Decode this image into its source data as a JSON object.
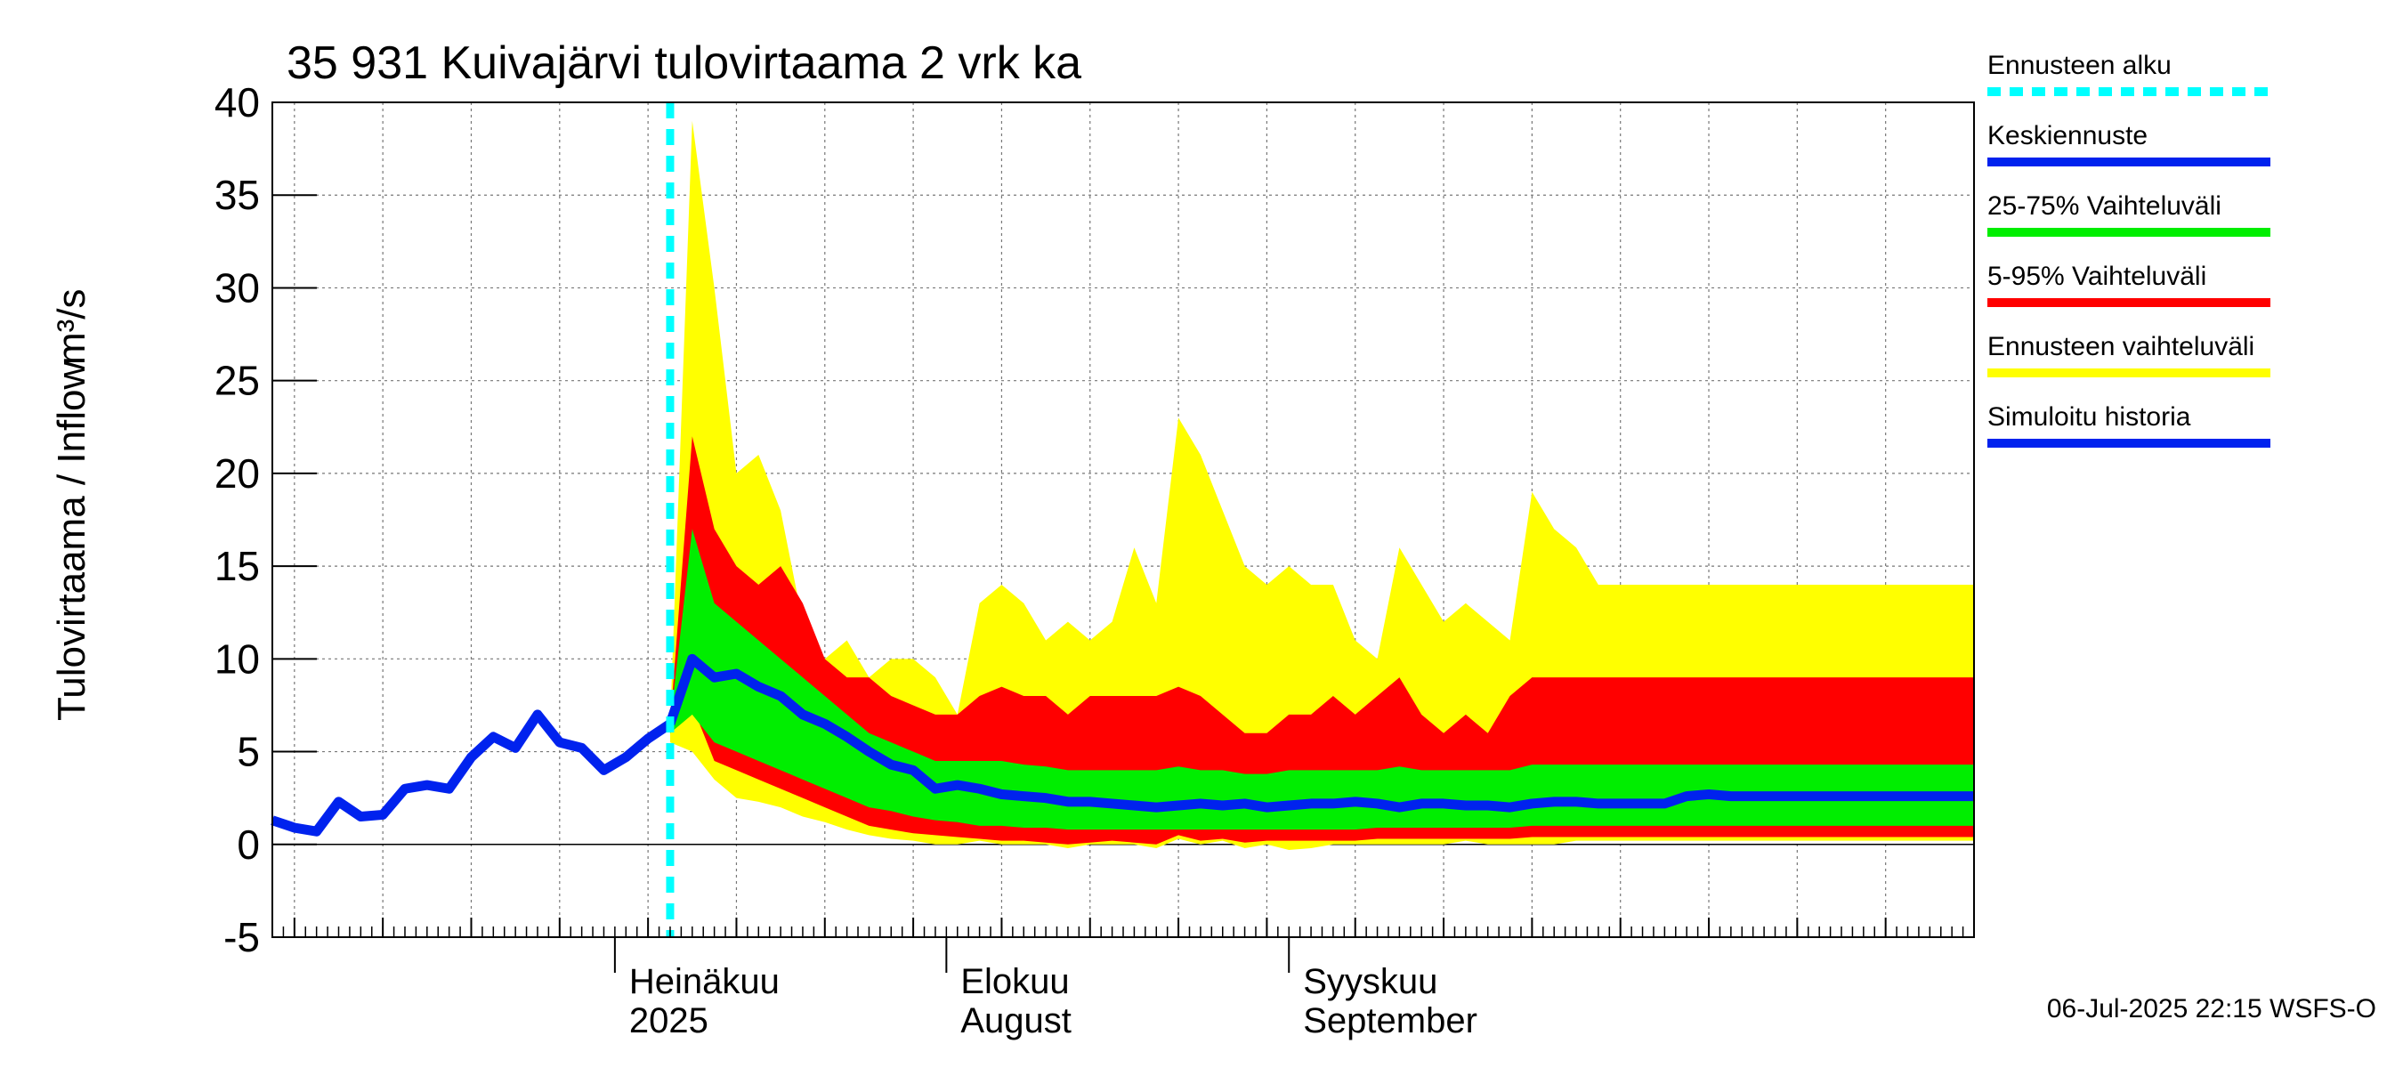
{
  "chart_data": {
    "type": "area",
    "title": "35 931 Kuivajärvi tulovirtaama 2 vrk ka",
    "ylabel": "Tulovirtaama / Inflow",
    "yunit": "m³/s",
    "ylim": [
      -5,
      40
    ],
    "yticks": [
      -5,
      0,
      5,
      10,
      15,
      20,
      25,
      30,
      35,
      40
    ],
    "xlim": [
      "2025-05-01",
      "2025-10-02"
    ],
    "grid": true,
    "legend_position": "right",
    "month_labels": [
      {
        "date": "2025-06-01",
        "line1": "Heinäkuu",
        "line2": "2025"
      },
      {
        "date": "2025-07-01",
        "line1": "Elokuu",
        "line2": "August"
      },
      {
        "date": "2025-08-01",
        "line1": "Syyskuu",
        "line2": "September"
      }
    ],
    "legend": [
      {
        "key": "forecast_start",
        "label": "Ennusteen alku",
        "color": "#00ffff",
        "style": "dashed"
      },
      {
        "key": "median",
        "label": "Keskiennuste",
        "color": "#0022ee",
        "style": "solid"
      },
      {
        "key": "p25_75",
        "label": "25-75% Vaihteluväli",
        "color": "#00ee00",
        "style": "solid"
      },
      {
        "key": "p5_95",
        "label": "5-95% Vaihteluväli",
        "color": "#ff0000",
        "style": "solid"
      },
      {
        "key": "range",
        "label": "Ennusteen vaihteluväli",
        "color": "#ffff00",
        "style": "solid"
      },
      {
        "key": "history",
        "label": "Simuloitu historia",
        "color": "#0022ee",
        "style": "solid"
      }
    ],
    "forecast_start": "2025-06-06",
    "x": [
      "2025-06-06",
      "2025-06-08",
      "2025-06-10",
      "2025-06-12",
      "2025-06-14",
      "2025-06-16",
      "2025-06-18",
      "2025-06-20",
      "2025-06-22",
      "2025-06-24",
      "2025-06-26",
      "2025-06-28",
      "2025-06-30",
      "2025-07-02",
      "2025-07-04",
      "2025-07-06",
      "2025-07-08",
      "2025-07-10",
      "2025-07-12",
      "2025-07-14",
      "2025-07-16",
      "2025-07-18",
      "2025-07-20",
      "2025-07-22",
      "2025-07-24",
      "2025-07-26",
      "2025-07-28",
      "2025-07-30",
      "2025-08-01",
      "2025-08-03",
      "2025-08-05",
      "2025-08-07",
      "2025-08-09",
      "2025-08-11",
      "2025-08-13",
      "2025-08-15",
      "2025-08-17",
      "2025-08-19",
      "2025-08-21",
      "2025-08-23",
      "2025-08-25",
      "2025-08-27",
      "2025-08-29",
      "2025-08-31",
      "2025-09-02",
      "2025-09-04",
      "2025-09-06",
      "2025-09-08",
      "2025-09-10",
      "2025-09-12",
      "2025-09-14",
      "2025-09-16",
      "2025-09-18",
      "2025-09-20",
      "2025-09-22",
      "2025-09-24",
      "2025-09-26",
      "2025-09-28",
      "2025-09-30",
      "2025-10-02"
    ],
    "series": [
      {
        "key": "range",
        "upper": [
          6.5,
          39,
          30,
          20,
          21,
          18,
          12,
          10,
          11,
          9,
          10,
          10,
          9,
          7,
          13,
          14,
          13,
          11,
          12,
          11,
          12,
          16,
          13,
          23,
          21,
          18,
          15,
          14,
          15,
          14,
          14,
          11,
          10,
          16,
          14,
          12,
          13,
          12,
          11,
          19,
          17,
          16,
          14,
          14,
          14,
          14,
          14,
          14,
          14,
          14,
          14,
          14,
          14,
          14,
          14,
          14,
          14,
          14,
          14,
          14
        ],
        "lower": [
          5.5,
          5,
          3.5,
          2.5,
          2.3,
          2,
          1.5,
          1.2,
          0.8,
          0.5,
          0.3,
          0.2,
          0,
          0,
          0.2,
          0,
          0,
          0,
          -0.2,
          0,
          0,
          0,
          -0.2,
          0.3,
          0,
          0.2,
          -0.2,
          0,
          -0.3,
          -0.2,
          0,
          0,
          0,
          0,
          0,
          0,
          0.2,
          0,
          0,
          0,
          0,
          0.2,
          0.2,
          0.2,
          0.2,
          0.2,
          0.2,
          0.2,
          0.2,
          0.2,
          0.2,
          0.2,
          0.2,
          0.2,
          0.2,
          0.2,
          0.2,
          0.2,
          0.2,
          0.2
        ]
      },
      {
        "key": "p5_95",
        "upper": [
          6.5,
          22,
          17,
          15,
          14,
          15,
          13,
          10,
          9,
          9,
          8,
          7.5,
          7,
          7,
          8,
          8.5,
          8,
          8,
          7,
          8,
          8,
          8,
          8,
          8.5,
          8,
          7,
          6,
          6,
          7,
          7,
          8,
          7,
          8,
          9,
          7,
          6,
          7,
          6,
          8,
          9,
          9,
          9,
          9,
          9,
          9,
          9,
          9,
          9,
          9,
          9,
          9,
          9,
          9,
          9,
          9,
          9,
          9,
          9,
          9,
          9
        ],
        "lower": [
          6,
          7.5,
          4.5,
          4,
          3.5,
          3,
          2.5,
          2,
          1.5,
          1,
          0.8,
          0.6,
          0.5,
          0.4,
          0.3,
          0.2,
          0.2,
          0.1,
          0,
          0.1,
          0.2,
          0.1,
          0,
          0.5,
          0.2,
          0.3,
          0.1,
          0.2,
          0.2,
          0.2,
          0.2,
          0.2,
          0.3,
          0.3,
          0.3,
          0.3,
          0.3,
          0.3,
          0.3,
          0.4,
          0.4,
          0.4,
          0.4,
          0.4,
          0.4,
          0.4,
          0.4,
          0.4,
          0.4,
          0.4,
          0.4,
          0.4,
          0.4,
          0.4,
          0.4,
          0.4,
          0.4,
          0.4,
          0.4,
          0.4
        ]
      },
      {
        "key": "p25_75",
        "upper": [
          6.5,
          17,
          13,
          12,
          11,
          10,
          9,
          8,
          7,
          6,
          5.5,
          5,
          4.5,
          4.5,
          4.5,
          4.5,
          4.3,
          4.2,
          4,
          4,
          4,
          4,
          4,
          4.2,
          4,
          4,
          3.8,
          3.8,
          4,
          4,
          4,
          4,
          4,
          4.2,
          4,
          4,
          4,
          4,
          4,
          4.3,
          4.3,
          4.3,
          4.3,
          4.3,
          4.3,
          4.3,
          4.3,
          4.3,
          4.3,
          4.3,
          4.3,
          4.3,
          4.3,
          4.3,
          4.3,
          4.3,
          4.3,
          4.3,
          4.3,
          4.3
        ],
        "lower": [
          6,
          7,
          5.5,
          5,
          4.5,
          4,
          3.5,
          3,
          2.5,
          2,
          1.8,
          1.5,
          1.3,
          1.2,
          1,
          1,
          0.9,
          0.9,
          0.8,
          0.8,
          0.8,
          0.8,
          0.8,
          0.8,
          0.8,
          0.8,
          0.8,
          0.8,
          0.8,
          0.8,
          0.8,
          0.8,
          0.9,
          0.9,
          0.9,
          0.9,
          0.9,
          0.9,
          0.9,
          1,
          1,
          1,
          1,
          1,
          1,
          1,
          1,
          1,
          1,
          1,
          1,
          1,
          1,
          1,
          1,
          1,
          1,
          1,
          1,
          1
        ]
      },
      {
        "key": "median",
        "values": [
          6.5,
          10,
          9,
          9.2,
          8.5,
          8,
          7,
          6.5,
          5.8,
          5,
          4.3,
          4,
          3,
          3.2,
          3,
          2.7,
          2.6,
          2.5,
          2.3,
          2.3,
          2.2,
          2.1,
          2,
          2.1,
          2.2,
          2.1,
          2.2,
          2,
          2.1,
          2.2,
          2.2,
          2.3,
          2.2,
          2,
          2.2,
          2.2,
          2.1,
          2.1,
          2,
          2.2,
          2.3,
          2.3,
          2.2,
          2.2,
          2.2,
          2.2,
          2.6,
          2.7,
          2.6,
          2.6,
          2.6,
          2.6,
          2.6,
          2.6,
          2.6,
          2.6,
          2.6,
          2.6,
          2.6,
          2.6
        ]
      },
      {
        "key": "history",
        "x": [
          "2025-05-01",
          "2025-05-03",
          "2025-05-05",
          "2025-05-07",
          "2025-05-09",
          "2025-05-11",
          "2025-05-13",
          "2025-05-15",
          "2025-05-17",
          "2025-05-19",
          "2025-05-21",
          "2025-05-23",
          "2025-05-25",
          "2025-05-27",
          "2025-05-29",
          "2025-05-31",
          "2025-06-02",
          "2025-06-04",
          "2025-06-06"
        ],
        "values": [
          1.3,
          0.9,
          0.7,
          2.3,
          1.5,
          1.6,
          3,
          3.2,
          3,
          4.7,
          5.8,
          5.2,
          7,
          5.5,
          5.2,
          4,
          4.7,
          5.7,
          6.5
        ]
      }
    ]
  },
  "footer": "06-Jul-2025 22:15 WSFS-O"
}
